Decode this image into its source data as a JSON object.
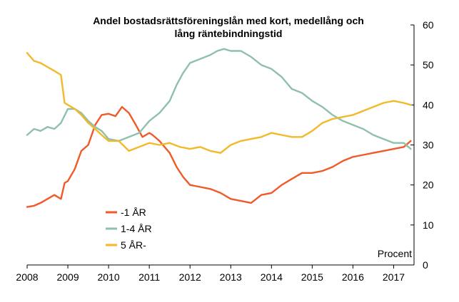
{
  "chart_data": {
    "type": "line",
    "title_lines": [
      "Andel bostadsrättsföreningslån med kort, medellång och",
      "lång räntebindningstid"
    ],
    "unit_label": "Procent",
    "x_ticks": [
      "2008",
      "2009",
      "2010",
      "2011",
      "2012",
      "2013",
      "2014",
      "2015",
      "2016",
      "2017"
    ],
    "x_tick_values": [
      2008,
      2009,
      2010,
      2011,
      2012,
      2013,
      2014,
      2015,
      2016,
      2017
    ],
    "xlim": [
      2008,
      2017.5
    ],
    "y_ticks": [
      "0",
      "10",
      "20",
      "30",
      "40",
      "50",
      "60"
    ],
    "y_tick_values": [
      0,
      10,
      20,
      30,
      40,
      50,
      60
    ],
    "ylim": [
      0,
      60
    ],
    "y_axis_side": "right",
    "legend_placement": "lower-left",
    "series": [
      {
        "name": "-1 ÅR",
        "color": "#f05a28",
        "x": [
          2008.0,
          2008.17,
          2008.33,
          2008.5,
          2008.67,
          2008.83,
          2008.92,
          2009.0,
          2009.17,
          2009.33,
          2009.5,
          2009.67,
          2009.83,
          2010.0,
          2010.17,
          2010.33,
          2010.5,
          2010.67,
          2010.83,
          2011.0,
          2011.08,
          2011.25,
          2011.5,
          2011.67,
          2011.83,
          2012.0,
          2012.25,
          2012.5,
          2012.75,
          2013.0,
          2013.25,
          2013.5,
          2013.75,
          2014.0,
          2014.25,
          2014.5,
          2014.75,
          2015.0,
          2015.25,
          2015.5,
          2015.75,
          2016.0,
          2016.25,
          2016.5,
          2016.75,
          2017.0,
          2017.25,
          2017.42
        ],
        "y": [
          14.5,
          14.8,
          15.5,
          16.5,
          17.5,
          16.5,
          20.5,
          21.0,
          24.0,
          28.5,
          30.0,
          35.0,
          37.5,
          37.8,
          37.2,
          39.5,
          38.0,
          35.0,
          32.0,
          33.0,
          32.5,
          31.0,
          28.0,
          24.5,
          22.0,
          20.0,
          19.5,
          19.0,
          18.0,
          16.5,
          16.0,
          15.5,
          17.5,
          18.0,
          20.0,
          21.5,
          23.0,
          23.0,
          23.5,
          24.5,
          26.0,
          27.0,
          27.5,
          28.0,
          28.5,
          29.0,
          29.5,
          31.0
        ]
      },
      {
        "name": "1-4 ÅR",
        "color": "#8fc1aa",
        "x": [
          2008.0,
          2008.17,
          2008.33,
          2008.5,
          2008.67,
          2008.83,
          2009.0,
          2009.17,
          2009.33,
          2009.5,
          2009.67,
          2009.83,
          2010.0,
          2010.25,
          2010.5,
          2010.75,
          2011.0,
          2011.25,
          2011.5,
          2011.67,
          2011.83,
          2012.0,
          2012.25,
          2012.5,
          2012.67,
          2012.83,
          2013.0,
          2013.25,
          2013.5,
          2013.75,
          2014.0,
          2014.25,
          2014.5,
          2014.75,
          2015.0,
          2015.25,
          2015.5,
          2015.75,
          2016.0,
          2016.25,
          2016.5,
          2016.75,
          2017.0,
          2017.25,
          2017.42
        ],
        "y": [
          32.5,
          34.0,
          33.5,
          34.5,
          34.0,
          35.5,
          39.0,
          39.0,
          38.0,
          36.0,
          34.5,
          33.5,
          31.5,
          31.0,
          32.0,
          33.0,
          36.0,
          38.0,
          41.0,
          45.0,
          48.0,
          50.5,
          51.5,
          52.5,
          53.5,
          54.0,
          53.5,
          53.5,
          52.0,
          50.0,
          49.0,
          47.0,
          44.0,
          43.0,
          41.0,
          39.5,
          37.5,
          36.0,
          35.0,
          34.0,
          32.5,
          31.5,
          30.5,
          30.5,
          29.0
        ]
      },
      {
        "name": "5 ÅR-",
        "color": "#f2b92b",
        "x": [
          2008.0,
          2008.17,
          2008.33,
          2008.5,
          2008.67,
          2008.83,
          2008.92,
          2009.0,
          2009.17,
          2009.33,
          2009.5,
          2009.67,
          2009.83,
          2010.0,
          2010.25,
          2010.5,
          2010.75,
          2011.0,
          2011.25,
          2011.5,
          2011.75,
          2012.0,
          2012.25,
          2012.5,
          2012.75,
          2013.0,
          2013.25,
          2013.5,
          2013.75,
          2014.0,
          2014.25,
          2014.5,
          2014.75,
          2015.0,
          2015.25,
          2015.5,
          2015.75,
          2016.0,
          2016.25,
          2016.5,
          2016.75,
          2017.0,
          2017.25,
          2017.42
        ],
        "y": [
          53.0,
          51.0,
          50.5,
          49.5,
          48.5,
          47.5,
          40.5,
          40.0,
          39.0,
          37.5,
          35.5,
          34.0,
          32.5,
          31.0,
          31.0,
          28.5,
          29.5,
          30.5,
          30.0,
          30.5,
          29.5,
          29.0,
          29.5,
          28.5,
          28.0,
          30.0,
          31.0,
          31.5,
          32.0,
          33.0,
          32.5,
          32.0,
          32.0,
          33.5,
          35.5,
          36.5,
          37.0,
          37.5,
          38.5,
          39.5,
          40.5,
          41.0,
          40.5,
          40.0
        ]
      }
    ]
  }
}
